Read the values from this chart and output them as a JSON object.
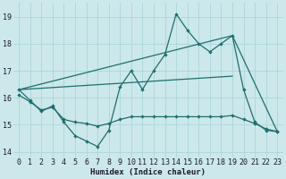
{
  "xlabel": "Humidex (Indice chaleur)",
  "bg_color": "#cce8ea",
  "grid_color": "#b0d8dc",
  "line_color": "#1e6e6e",
  "xlim": [
    -0.5,
    23.5
  ],
  "ylim": [
    13.8,
    19.5
  ],
  "yticks": [
    14,
    15,
    16,
    17,
    18,
    19
  ],
  "xticks": [
    0,
    1,
    2,
    3,
    4,
    5,
    6,
    7,
    8,
    9,
    10,
    11,
    12,
    13,
    14,
    15,
    16,
    17,
    18,
    19,
    20,
    21,
    22,
    23
  ],
  "lines": [
    {
      "x": [
        0,
        1,
        2,
        3,
        4,
        5,
        6,
        7,
        8,
        9,
        10,
        11,
        12,
        13,
        14,
        15,
        16,
        17,
        18,
        19,
        20,
        21,
        22,
        23
      ],
      "y": [
        16.3,
        15.9,
        15.5,
        15.7,
        15.1,
        14.6,
        14.4,
        14.2,
        14.8,
        16.4,
        17.0,
        16.3,
        17.0,
        17.6,
        19.1,
        18.5,
        18.0,
        17.7,
        18.0,
        18.3,
        16.3,
        15.1,
        14.8,
        14.75
      ],
      "markers": true
    },
    {
      "x": [
        0,
        1,
        2,
        3,
        4,
        5,
        6,
        7,
        8,
        9,
        10,
        11,
        12,
        13,
        14,
        15,
        16,
        17,
        18,
        19,
        20,
        21,
        22,
        23
      ],
      "y": [
        16.1,
        15.85,
        15.55,
        15.65,
        15.2,
        15.1,
        15.05,
        14.95,
        15.05,
        15.2,
        15.3,
        15.3,
        15.3,
        15.3,
        15.3,
        15.3,
        15.3,
        15.3,
        15.3,
        15.35,
        15.2,
        15.05,
        14.85,
        14.75
      ],
      "markers": true
    },
    {
      "x": [
        0,
        19,
        23
      ],
      "y": [
        16.3,
        18.3,
        14.75
      ],
      "markers": false
    },
    {
      "comment": "gentle diagonal from (0,16.3) to (19, 16.8)",
      "x": [
        0,
        19
      ],
      "y": [
        16.3,
        16.8
      ],
      "markers": false
    }
  ]
}
